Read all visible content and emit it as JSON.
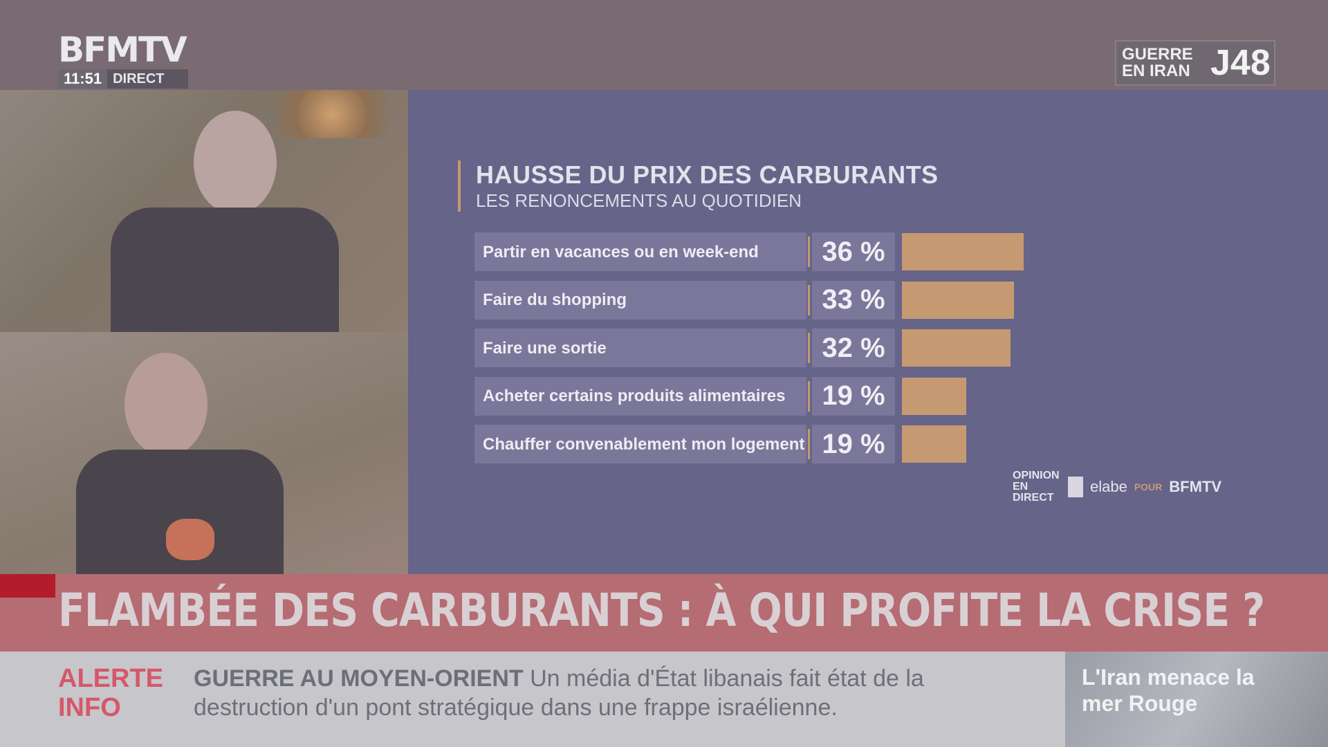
{
  "channel": {
    "logo": "BFMTV",
    "time": "11:51",
    "direct_label": "DIRECT"
  },
  "war_badge": {
    "line1": "GUERRE",
    "line2": "EN IRAN",
    "day": "J48"
  },
  "chart_data": {
    "type": "bar",
    "title": "HAUSSE DU PRIX DES CARBURANTS",
    "subtitle": "LES RENONCEMENTS AU QUOTIDIEN",
    "categories": [
      "Partir en vacances ou en week-end",
      "Faire du shopping",
      "Faire une sortie",
      "Acheter certains produits alimentaires",
      "Chauffer convenablement mon logement"
    ],
    "values": [
      36,
      33,
      32,
      19,
      19
    ],
    "value_labels": [
      "36 %",
      "33 %",
      "32 %",
      "19 %",
      "19 %"
    ],
    "unit": "%",
    "bar_color": "#c59a72",
    "orientation": "horizontal"
  },
  "source": {
    "opinion": "OPINION EN DIRECT",
    "elabe": "elabe",
    "pour": "POUR",
    "bfmtv": "BFMTV"
  },
  "headline": "FLAMBÉE DES CARBURANTS : À QUI PROFITE LA CRISE ?",
  "ticker": {
    "alert_line1": "ALERTE",
    "alert_line2": "INFO",
    "topic": "GUERRE AU MOYEN-ORIENT",
    "message": "Un média d'État libanais fait état de la destruction d'un pont stratégique dans une frappe israélienne."
  },
  "promo": {
    "text": "L'Iran menace la mer Rouge"
  }
}
